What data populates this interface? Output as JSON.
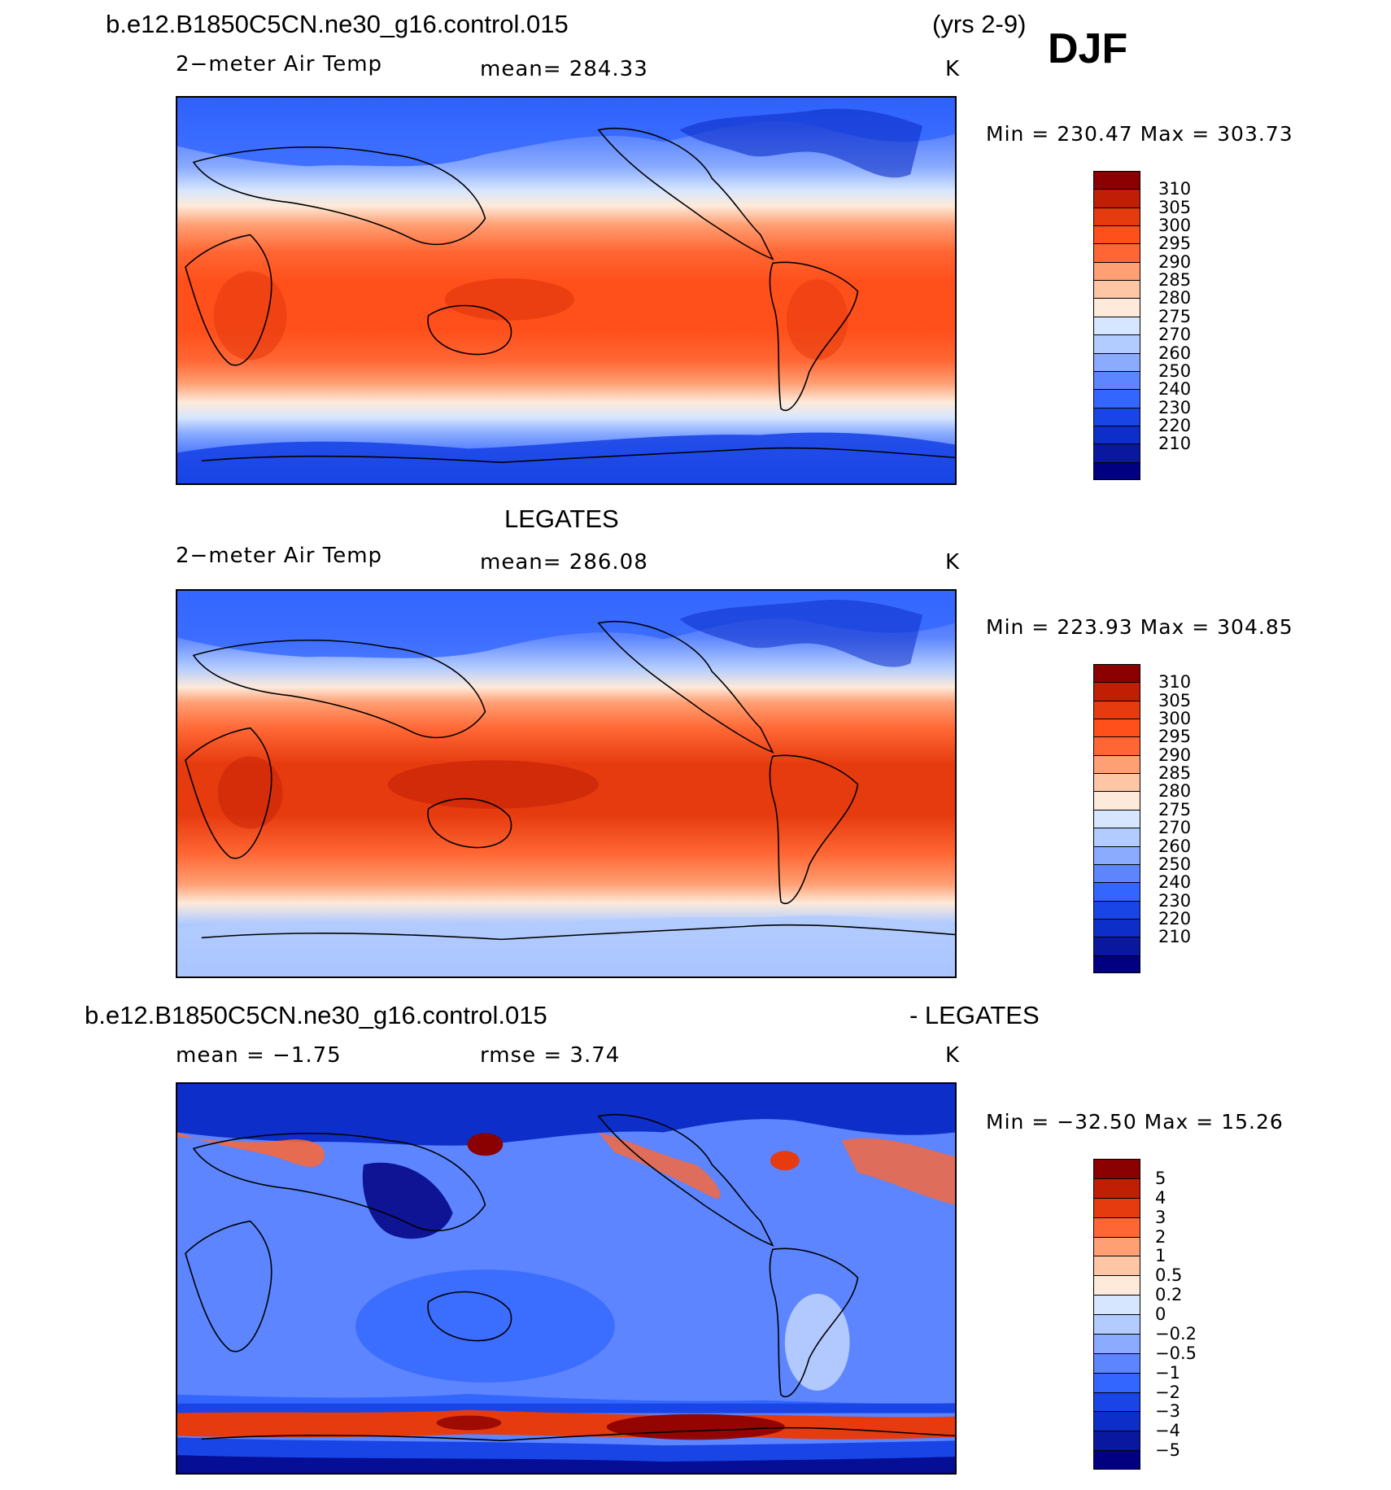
{
  "header": {
    "case_name": "b.e12.B1850C5CN.ne30_g16.control.015",
    "years": "(yrs 2-9)",
    "season": "DJF"
  },
  "colors": {
    "temp_scale": [
      "#000080",
      "#0a18a0",
      "#0d2ec8",
      "#1a45e6",
      "#3366ff",
      "#5c85ff",
      "#8aabff",
      "#b3ccff",
      "#d6e6ff",
      "#fdeada",
      "#ffc6a6",
      "#ff9f73",
      "#ff6633",
      "#ff4f1a",
      "#e63a0f",
      "#c01f05",
      "#8b0000"
    ],
    "diff_scale": [
      "#000080",
      "#0a18a0",
      "#0d2ec8",
      "#1a45e6",
      "#3366ff",
      "#5c85ff",
      "#8aabff",
      "#b3ccff",
      "#d6e6ff",
      "#fdeada",
      "#ffc6a6",
      "#ff9f73",
      "#ff6633",
      "#e63a0f",
      "#c01f05",
      "#8b0000"
    ]
  },
  "panels": [
    {
      "id": "model",
      "title": "",
      "variable": "2−meter Air Temp",
      "stat1": "mean=  284.33",
      "stat2": "",
      "units": "K",
      "minmax": "Min  =  230.47  Max  =  303.73",
      "colorbar": [
        "310",
        "305",
        "300",
        "295",
        "290",
        "285",
        "280",
        "275",
        "270",
        "260",
        "250",
        "240",
        "230",
        "220",
        "210"
      ]
    },
    {
      "id": "obs",
      "title": "LEGATES",
      "variable": "2−meter Air Temp",
      "stat1": "mean=  286.08",
      "stat2": "",
      "units": "K",
      "minmax": "Min  =  223.93  Max  =  304.85",
      "colorbar": [
        "310",
        "305",
        "300",
        "295",
        "290",
        "285",
        "280",
        "275",
        "270",
        "260",
        "250",
        "240",
        "230",
        "220",
        "210"
      ]
    },
    {
      "id": "diff",
      "title_left": "b.e12.B1850C5CN.ne30_g16.control.015",
      "title_right": "- LEGATES",
      "variable": "mean  =   −1.75",
      "stat1": "rmse  =     3.74",
      "units": "K",
      "minmax": "Min  =  −32.50  Max  =    15.26",
      "colorbar": [
        "5",
        "4",
        "3",
        "2",
        "1",
        "0.5",
        "0.2",
        "0",
        "−0.2",
        "−0.5",
        "−1",
        "−2",
        "−3",
        "−4",
        "−5"
      ]
    }
  ]
}
